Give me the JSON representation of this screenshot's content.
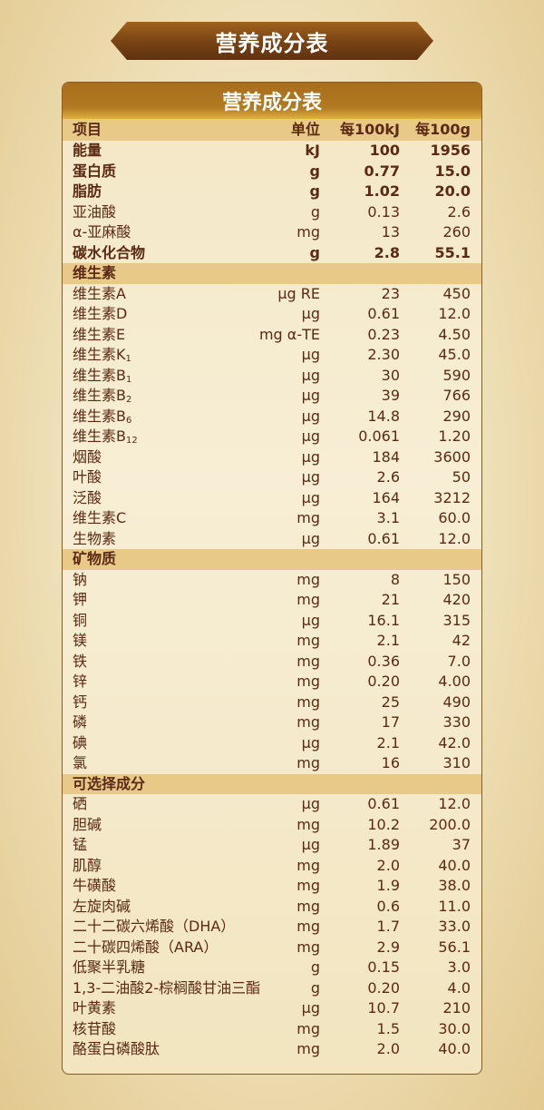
{
  "banner_title": "营养成分表",
  "table": {
    "title": "营养成分表",
    "columns": [
      "项目",
      "单位",
      "每100kJ",
      "每100g"
    ],
    "rows": [
      {
        "name": "能量",
        "unit": "kJ",
        "per_100kj": "100",
        "per_100g": "1956",
        "bold": true
      },
      {
        "name": "蛋白质",
        "unit": "g",
        "per_100kj": "0.77",
        "per_100g": "15.0",
        "bold": true
      },
      {
        "name": "脂肪",
        "unit": "g",
        "per_100kj": "1.02",
        "per_100g": "20.0",
        "bold": true
      },
      {
        "name": "亚油酸",
        "unit": "g",
        "per_100kj": "0.13",
        "per_100g": "2.6"
      },
      {
        "name": " α-亚麻酸",
        "unit": "mg",
        "per_100kj": "13",
        "per_100g": "260"
      },
      {
        "name": "碳水化合物",
        "unit": "g",
        "per_100kj": "2.8",
        "per_100g": "55.1",
        "bold": true
      },
      {
        "section": "维生素"
      },
      {
        "name": "维生素A",
        "unit": "μg RE",
        "per_100kj": "23",
        "per_100g": "450"
      },
      {
        "name": "维生素D",
        "unit": "μg",
        "per_100kj": "0.61",
        "per_100g": "12.0"
      },
      {
        "name": "维生素E",
        "unit": "mg α-TE",
        "per_100kj": "0.23",
        "per_100g": "4.50"
      },
      {
        "name": "维生素K",
        "sub": "1",
        "unit": "μg",
        "per_100kj": "2.30",
        "per_100g": "45.0"
      },
      {
        "name": "维生素B",
        "sub": "1",
        "unit": "μg",
        "per_100kj": "30",
        "per_100g": "590"
      },
      {
        "name": "维生素B",
        "sub": "2",
        "unit": "μg",
        "per_100kj": "39",
        "per_100g": "766"
      },
      {
        "name": "维生素B",
        "sub": "6",
        "unit": "μg",
        "per_100kj": "14.8",
        "per_100g": "290"
      },
      {
        "name": "维生素B",
        "sub": "12",
        "unit": "μg",
        "per_100kj": "0.061",
        "per_100g": "1.20"
      },
      {
        "name": "烟酸",
        "unit": "μg",
        "per_100kj": "184",
        "per_100g": "3600"
      },
      {
        "name": "叶酸",
        "unit": "μg",
        "per_100kj": "2.6",
        "per_100g": "50"
      },
      {
        "name": "泛酸",
        "unit": "μg",
        "per_100kj": "164",
        "per_100g": "3212"
      },
      {
        "name": "维生素C",
        "unit": "mg",
        "per_100kj": "3.1",
        "per_100g": "60.0"
      },
      {
        "name": "生物素",
        "unit": "μg",
        "per_100kj": "0.61",
        "per_100g": "12.0"
      },
      {
        "section": "矿物质"
      },
      {
        "name": "钠",
        "unit": "mg",
        "per_100kj": "8",
        "per_100g": "150"
      },
      {
        "name": "钾",
        "unit": "mg",
        "per_100kj": "21",
        "per_100g": "420"
      },
      {
        "name": "铜",
        "unit": "μg",
        "per_100kj": "16.1",
        "per_100g": "315"
      },
      {
        "name": "镁",
        "unit": "mg",
        "per_100kj": "2.1",
        "per_100g": "42"
      },
      {
        "name": "铁",
        "unit": "mg",
        "per_100kj": "0.36",
        "per_100g": "7.0"
      },
      {
        "name": "锌",
        "unit": "mg",
        "per_100kj": "0.20",
        "per_100g": "4.00"
      },
      {
        "name": "钙",
        "unit": "mg",
        "per_100kj": "25",
        "per_100g": "490"
      },
      {
        "name": "磷",
        "unit": "mg",
        "per_100kj": "17",
        "per_100g": "330"
      },
      {
        "name": "碘",
        "unit": "μg",
        "per_100kj": "2.1",
        "per_100g": "42.0"
      },
      {
        "name": "氯",
        "unit": "mg",
        "per_100kj": "16",
        "per_100g": "310"
      },
      {
        "section": "可选择成分"
      },
      {
        "name": "硒",
        "unit": "μg",
        "per_100kj": "0.61",
        "per_100g": "12.0"
      },
      {
        "name": "胆碱",
        "unit": "mg",
        "per_100kj": "10.2",
        "per_100g": "200.0"
      },
      {
        "name": "锰",
        "unit": "μg",
        "per_100kj": "1.89",
        "per_100g": "37"
      },
      {
        "name": "肌醇",
        "unit": "mg",
        "per_100kj": "2.0",
        "per_100g": "40.0"
      },
      {
        "name": "牛磺酸",
        "unit": "mg",
        "per_100kj": "1.9",
        "per_100g": "38.0"
      },
      {
        "name": "左旋肉碱",
        "unit": "mg",
        "per_100kj": "0.6",
        "per_100g": "11.0"
      },
      {
        "name": "二十二碳六烯酸（DHA）",
        "unit": "mg",
        "per_100kj": "1.7",
        "per_100g": "33.0"
      },
      {
        "name": "二十碳四烯酸（ARA）",
        "unit": "mg",
        "per_100kj": "2.9",
        "per_100g": "56.1"
      },
      {
        "name": "低聚半乳糖",
        "unit": "g",
        "per_100kj": "0.15",
        "per_100g": "3.0"
      },
      {
        "name": "1,3-二油酸2-棕榈酸甘油三酯",
        "unit": "g",
        "per_100kj": "0.20",
        "per_100g": "4.0"
      },
      {
        "name": "叶黄素",
        "unit": "μg",
        "per_100kj": "10.7",
        "per_100g": "210"
      },
      {
        "name": "核苷酸",
        "unit": "mg",
        "per_100kj": "1.5",
        "per_100g": "30.0"
      },
      {
        "name": "酪蛋白磷酸肽",
        "unit": "mg",
        "per_100kj": "2.0",
        "per_100g": "40.0"
      }
    ]
  },
  "colors": {
    "text": "#5a2a14",
    "section_bg": "#e9c988",
    "banner": "#7a4414",
    "title_bar": "#b07a22"
  }
}
